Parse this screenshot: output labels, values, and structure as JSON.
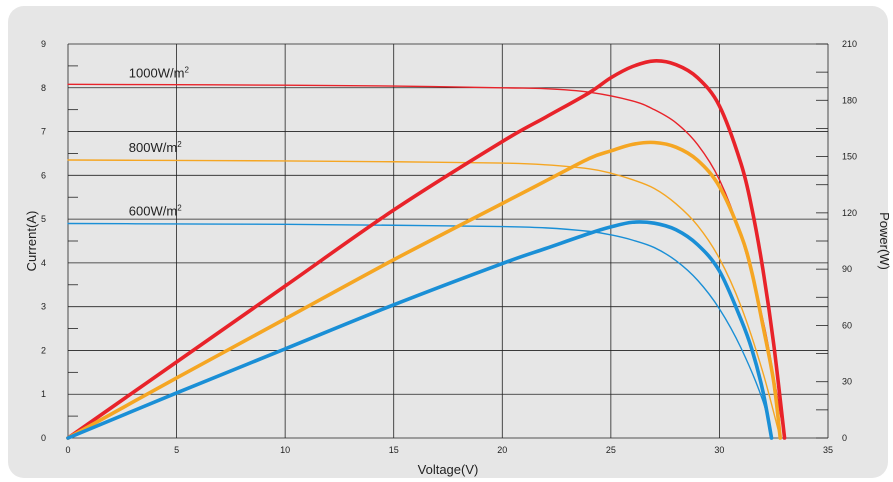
{
  "chart_data": {
    "type": "line",
    "xlabel": "Voltage(V)",
    "ylabel_left": "Current(A)",
    "ylabel_right": "Power(W)",
    "xlim": [
      0,
      35
    ],
    "ylim_left": [
      0,
      9
    ],
    "ylim_right": [
      0,
      210
    ],
    "x_ticks": [
      "0",
      "5",
      "10",
      "15",
      "20",
      "25",
      "30",
      "35"
    ],
    "y_left_ticks": [
      "0",
      "1",
      "2",
      "3",
      "4",
      "5",
      "6",
      "7",
      "8",
      "9"
    ],
    "y_right_ticks": [
      "0",
      "30",
      "60",
      "90",
      "120",
      "150",
      "180",
      "210"
    ],
    "grid": true,
    "irradiance_labels": [
      {
        "text": "1000W/m",
        "sup": "2",
        "current": 8.05
      },
      {
        "text": "800W/m",
        "sup": "2",
        "current": 6.35
      },
      {
        "text": "600W/m",
        "sup": "2",
        "current": 4.9
      }
    ],
    "series": [
      {
        "kind": "current",
        "color": "#e8232a",
        "points": [
          [
            0,
            8.08
          ],
          [
            5,
            8.07
          ],
          [
            10,
            8.06
          ],
          [
            15,
            8.04
          ],
          [
            20,
            8.0
          ],
          [
            22,
            7.98
          ],
          [
            24,
            7.9
          ],
          [
            26,
            7.7
          ],
          [
            27,
            7.5
          ],
          [
            28,
            7.2
          ],
          [
            29,
            6.7
          ],
          [
            30,
            5.9
          ],
          [
            31,
            4.6
          ],
          [
            32,
            2.7
          ],
          [
            32.5,
            1.4
          ],
          [
            33,
            0
          ]
        ]
      },
      {
        "kind": "current",
        "color": "#f5a623",
        "points": [
          [
            0,
            6.35
          ],
          [
            5,
            6.34
          ],
          [
            10,
            6.33
          ],
          [
            15,
            6.31
          ],
          [
            20,
            6.28
          ],
          [
            22,
            6.24
          ],
          [
            24,
            6.15
          ],
          [
            25,
            6.05
          ],
          [
            26,
            5.9
          ],
          [
            27,
            5.7
          ],
          [
            28,
            5.35
          ],
          [
            29,
            4.85
          ],
          [
            30,
            4.1
          ],
          [
            31,
            3.0
          ],
          [
            32,
            1.5
          ],
          [
            32.8,
            0
          ]
        ]
      },
      {
        "kind": "current",
        "color": "#1a8fd6",
        "points": [
          [
            0,
            4.9
          ],
          [
            5,
            4.89
          ],
          [
            10,
            4.88
          ],
          [
            15,
            4.86
          ],
          [
            20,
            4.83
          ],
          [
            22,
            4.8
          ],
          [
            24,
            4.72
          ],
          [
            25,
            4.64
          ],
          [
            26,
            4.52
          ],
          [
            27,
            4.35
          ],
          [
            28,
            4.05
          ],
          [
            29,
            3.6
          ],
          [
            30,
            2.95
          ],
          [
            31,
            2.05
          ],
          [
            32,
            0.85
          ],
          [
            32.4,
            0
          ]
        ]
      },
      {
        "kind": "power",
        "color": "#e8232a",
        "points": [
          [
            0,
            0
          ],
          [
            5,
            40.5
          ],
          [
            10,
            81
          ],
          [
            15,
            121.5
          ],
          [
            20,
            158
          ],
          [
            22,
            171
          ],
          [
            24,
            184
          ],
          [
            25,
            192
          ],
          [
            26,
            198
          ],
          [
            27,
            201
          ],
          [
            28,
            199
          ],
          [
            29,
            192
          ],
          [
            30,
            177
          ],
          [
            31,
            146
          ],
          [
            31.5,
            122
          ],
          [
            32,
            90
          ],
          [
            32.5,
            50
          ],
          [
            33,
            0
          ]
        ]
      },
      {
        "kind": "power",
        "color": "#f5a623",
        "points": [
          [
            0,
            0
          ],
          [
            5,
            32
          ],
          [
            10,
            63.5
          ],
          [
            15,
            95
          ],
          [
            20,
            125
          ],
          [
            22,
            137
          ],
          [
            24,
            149
          ],
          [
            25,
            153
          ],
          [
            26,
            156.5
          ],
          [
            27,
            157.5
          ],
          [
            28,
            155
          ],
          [
            29,
            148
          ],
          [
            30,
            134
          ],
          [
            31,
            108
          ],
          [
            31.5,
            88
          ],
          [
            32,
            60
          ],
          [
            32.5,
            30
          ],
          [
            32.8,
            0
          ]
        ]
      },
      {
        "kind": "power",
        "color": "#1a8fd6",
        "points": [
          [
            0,
            0
          ],
          [
            5,
            24
          ],
          [
            10,
            47.5
          ],
          [
            15,
            71
          ],
          [
            20,
            93
          ],
          [
            22,
            101
          ],
          [
            24,
            109
          ],
          [
            25,
            112.5
          ],
          [
            26,
            115
          ],
          [
            27,
            114.5
          ],
          [
            28,
            111
          ],
          [
            29,
            103
          ],
          [
            30,
            89
          ],
          [
            31,
            63
          ],
          [
            31.5,
            47
          ],
          [
            32,
            25
          ],
          [
            32.4,
            0
          ]
        ]
      }
    ]
  }
}
